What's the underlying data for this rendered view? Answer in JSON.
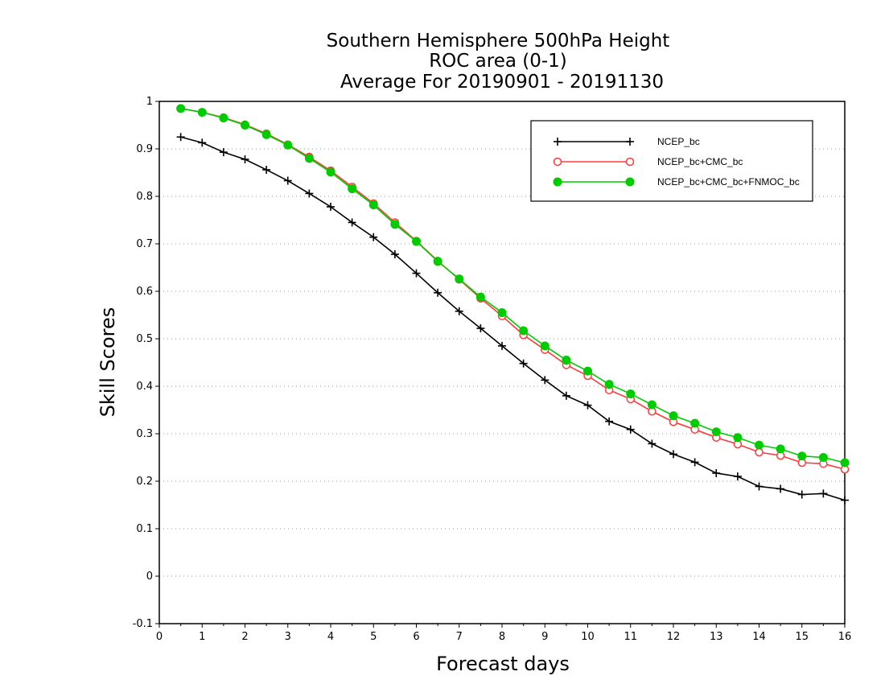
{
  "chart_data": {
    "type": "line",
    "title": [
      "Southern Hemisphere 500hPa Height",
      "ROC area (0-1)",
      "Average For 20190901 - 20191130"
    ],
    "xlabel": "Forecast days",
    "ylabel": "Skill Scores",
    "xlim": [
      0,
      16
    ],
    "ylim": [
      -0.1,
      1
    ],
    "xticks": [
      "0",
      "1",
      "2",
      "3",
      "4",
      "5",
      "6",
      "7",
      "8",
      "9",
      "10",
      "11",
      "12",
      "13",
      "14",
      "15",
      "16"
    ],
    "yticks": [
      "-0.1",
      "0",
      "0.1",
      "0.2",
      "0.3",
      "0.4",
      "0.5",
      "0.6",
      "0.7",
      "0.8",
      "0.9",
      "1"
    ],
    "grid": "horizontal-dotted",
    "legend_position": "top-right",
    "x": [
      0.5,
      1,
      1.5,
      2,
      2.5,
      3,
      3.5,
      4,
      4.5,
      5,
      5.5,
      6,
      6.5,
      7,
      7.5,
      8,
      8.5,
      9,
      9.5,
      10,
      10.5,
      11,
      11.5,
      12,
      12.5,
      13,
      13.5,
      14,
      14.5,
      15,
      15.5,
      16
    ],
    "series": [
      {
        "name": "NCEP_bc",
        "color": "#000000",
        "marker": "plus",
        "values": [
          0.925,
          0.913,
          0.893,
          0.878,
          0.856,
          0.833,
          0.806,
          0.778,
          0.745,
          0.714,
          0.678,
          0.638,
          0.597,
          0.558,
          0.522,
          0.485,
          0.448,
          0.413,
          0.38,
          0.36,
          0.326,
          0.309,
          0.279,
          0.257,
          0.24,
          0.217,
          0.21,
          0.189,
          0.184,
          0.172,
          0.174,
          0.16
        ]
      },
      {
        "name": "NCEP_bc+CMC_bc",
        "color": "#ff3b3b",
        "marker": "open-circle",
        "values": [
          0.985,
          0.977,
          0.966,
          0.951,
          0.932,
          0.909,
          0.883,
          0.854,
          0.82,
          0.785,
          0.745,
          0.706,
          0.664,
          0.625,
          0.585,
          0.548,
          0.508,
          0.477,
          0.445,
          0.422,
          0.392,
          0.373,
          0.347,
          0.325,
          0.309,
          0.292,
          0.278,
          0.261,
          0.254,
          0.239,
          0.237,
          0.225
        ]
      },
      {
        "name": "NCEP_bc+CMC_bc+FNMOC_bc",
        "color": "#00cc00",
        "marker": "filled-circle",
        "values": [
          0.985,
          0.977,
          0.965,
          0.95,
          0.93,
          0.908,
          0.88,
          0.851,
          0.816,
          0.782,
          0.741,
          0.705,
          0.663,
          0.626,
          0.588,
          0.555,
          0.517,
          0.485,
          0.455,
          0.432,
          0.404,
          0.384,
          0.361,
          0.338,
          0.322,
          0.304,
          0.292,
          0.276,
          0.268,
          0.253,
          0.25,
          0.239
        ]
      }
    ]
  }
}
